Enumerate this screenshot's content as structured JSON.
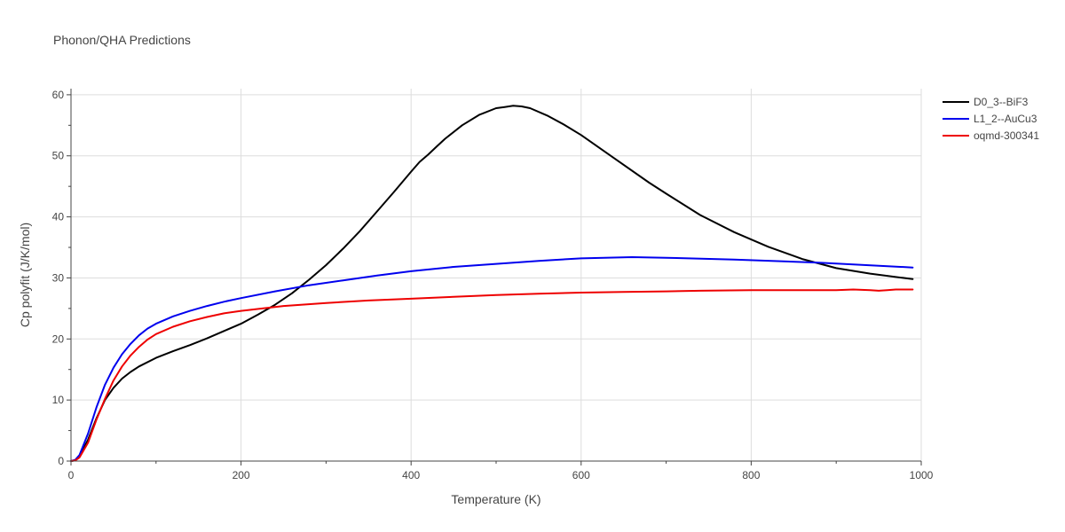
{
  "chart_data": {
    "type": "line",
    "title": "Phonon/QHA Predictions",
    "xlabel": "Temperature (K)",
    "ylabel": "Cp polyfit (J/K/mol)",
    "xlim": [
      0,
      1000
    ],
    "ylim": [
      0,
      61
    ],
    "xticks": [
      0,
      200,
      400,
      600,
      800,
      1000
    ],
    "yticks": [
      0,
      10,
      20,
      30,
      40,
      50,
      60
    ],
    "grid": true,
    "legend": "top-right",
    "series": [
      {
        "name": "D0_3--BiF3",
        "color": "#000000",
        "x": [
          0,
          5,
          10,
          20,
          30,
          40,
          50,
          60,
          70,
          80,
          100,
          120,
          140,
          160,
          180,
          200,
          220,
          240,
          260,
          280,
          300,
          320,
          340,
          360,
          380,
          400,
          410,
          420,
          430,
          440,
          460,
          480,
          500,
          510,
          520,
          530,
          540,
          560,
          580,
          600,
          640,
          680,
          700,
          740,
          780,
          820,
          860,
          900,
          940,
          990
        ],
        "y": [
          0,
          0.1,
          0.8,
          3.5,
          7.0,
          10.0,
          12.0,
          13.5,
          14.6,
          15.5,
          16.9,
          18.0,
          19.0,
          20.1,
          21.3,
          22.5,
          24.0,
          25.6,
          27.5,
          29.7,
          32.1,
          34.8,
          37.7,
          40.9,
          44.1,
          47.4,
          49.0,
          50.2,
          51.5,
          52.8,
          55.0,
          56.7,
          57.8,
          58.0,
          58.2,
          58.1,
          57.8,
          56.6,
          55.1,
          53.4,
          49.5,
          45.6,
          43.8,
          40.3,
          37.5,
          35.1,
          33.1,
          31.6,
          30.7,
          29.8
        ]
      },
      {
        "name": "L1_2--AuCu3",
        "color": "#0000ee",
        "x": [
          0,
          5,
          10,
          20,
          30,
          40,
          50,
          60,
          70,
          80,
          90,
          100,
          120,
          140,
          160,
          180,
          200,
          240,
          280,
          320,
          360,
          400,
          450,
          500,
          550,
          600,
          660,
          700,
          780,
          880,
          990
        ],
        "y": [
          0,
          0.2,
          1.0,
          4.5,
          8.8,
          12.5,
          15.3,
          17.5,
          19.2,
          20.6,
          21.7,
          22.5,
          23.7,
          24.6,
          25.4,
          26.1,
          26.7,
          27.8,
          28.8,
          29.6,
          30.4,
          31.1,
          31.8,
          32.3,
          32.8,
          33.2,
          33.4,
          33.3,
          33.0,
          32.5,
          31.7
        ]
      },
      {
        "name": "oqmd-300341",
        "color": "#ee0000",
        "x": [
          0,
          5,
          10,
          20,
          30,
          40,
          50,
          60,
          70,
          80,
          90,
          100,
          120,
          140,
          160,
          180,
          200,
          250,
          300,
          350,
          400,
          450,
          500,
          550,
          600,
          650,
          700,
          740,
          800,
          850,
          900,
          920,
          940,
          950,
          960,
          970,
          990
        ],
        "y": [
          0,
          0.1,
          0.6,
          3.0,
          6.8,
          10.2,
          13.2,
          15.5,
          17.3,
          18.7,
          19.9,
          20.8,
          22.0,
          22.9,
          23.6,
          24.2,
          24.6,
          25.4,
          25.9,
          26.3,
          26.6,
          26.9,
          27.2,
          27.4,
          27.6,
          27.7,
          27.8,
          27.9,
          28.0,
          28.0,
          28.0,
          28.1,
          28.0,
          27.9,
          28.0,
          28.1,
          28.1
        ]
      }
    ]
  }
}
